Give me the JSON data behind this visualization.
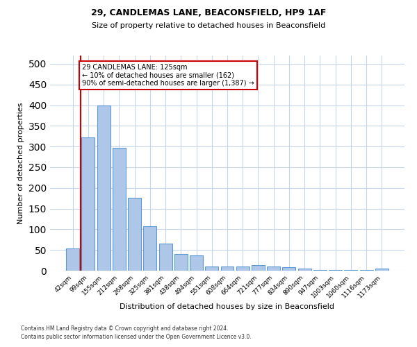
{
  "title1": "29, CANDLEMAS LANE, BEACONSFIELD, HP9 1AF",
  "title2": "Size of property relative to detached houses in Beaconsfield",
  "xlabel": "Distribution of detached houses by size in Beaconsfield",
  "ylabel": "Number of detached properties",
  "categories": [
    "42sqm",
    "99sqm",
    "155sqm",
    "212sqm",
    "268sqm",
    "325sqm",
    "381sqm",
    "438sqm",
    "494sqm",
    "551sqm",
    "608sqm",
    "664sqm",
    "721sqm",
    "777sqm",
    "834sqm",
    "890sqm",
    "947sqm",
    "1003sqm",
    "1060sqm",
    "1116sqm",
    "1173sqm"
  ],
  "values": [
    53,
    322,
    400,
    297,
    176,
    108,
    65,
    40,
    37,
    10,
    10,
    10,
    14,
    10,
    8,
    5,
    2,
    1,
    1,
    1,
    5
  ],
  "bar_color": "#aec6e8",
  "bar_edge_color": "#5b9bd5",
  "vline_x": 0.5,
  "vline_color": "#cc0000",
  "annotation_text": "29 CANDLEMAS LANE: 125sqm\n← 10% of detached houses are smaller (162)\n90% of semi-detached houses are larger (1,387) →",
  "annotation_box_color": "#ffffff",
  "annotation_box_edge": "#cc0000",
  "ylim": [
    0,
    520
  ],
  "yticks": [
    0,
    50,
    100,
    150,
    200,
    250,
    300,
    350,
    400,
    450,
    500
  ],
  "footer1": "Contains HM Land Registry data © Crown copyright and database right 2024.",
  "footer2": "Contains public sector information licensed under the Open Government Licence v3.0.",
  "background_color": "#ffffff",
  "grid_color": "#c8d4e8"
}
